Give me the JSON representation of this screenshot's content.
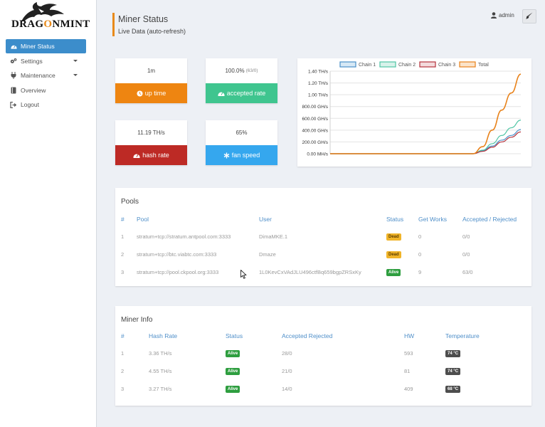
{
  "brand": {
    "logo_prefix": "DRAG",
    "logo_o": "O",
    "logo_suffix": "NMINT"
  },
  "sidebar": {
    "items": [
      {
        "label": "Miner Status",
        "icon": "dashboard-icon"
      },
      {
        "label": "Settings",
        "icon": "gears-icon"
      },
      {
        "label": "Maintenance",
        "icon": "plug-icon"
      },
      {
        "label": "Overview",
        "icon": "book-icon"
      },
      {
        "label": "Logout",
        "icon": "sign-out-icon"
      }
    ]
  },
  "header": {
    "title": "Miner Status",
    "subtitle": "Live Data (auto-refresh)"
  },
  "user": {
    "name": "admin"
  },
  "stats": [
    {
      "value": "1m",
      "value_note": "",
      "label": "up time",
      "color": "#ee8511",
      "icon": "clock-icon"
    },
    {
      "value": "100.0%",
      "value_note": "(63/0)",
      "label": "accepted rate",
      "color": "#3fc58f",
      "icon": "dashboard-icon"
    },
    {
      "value": "11.19 TH/s",
      "value_note": "",
      "label": "hash rate",
      "color": "#bd2a25",
      "icon": "dashboard-icon"
    },
    {
      "value": "65%",
      "value_note": "",
      "label": "fan speed",
      "color": "#35a7ee",
      "icon": "asterisk-icon"
    }
  ],
  "chart_data": {
    "type": "line",
    "x": [
      0,
      1,
      2,
      3,
      4,
      5,
      6,
      7,
      8,
      9,
      10,
      11,
      12,
      13,
      14,
      15,
      16,
      17,
      18,
      19,
      20
    ],
    "yticks": [
      "0.00 MH/s",
      "200.00 GH/s",
      "400.00 GH/s",
      "600.00 GH/s",
      "800.00 GH/s",
      "1.00 TH/s",
      "1.20 TH/s",
      "1.40 TH/s"
    ],
    "ylim": [
      0,
      1.4
    ],
    "legend_position": "top",
    "series": [
      {
        "name": "Chain 1",
        "color": "#4a90c8",
        "fill": "#d6e8f5",
        "values": [
          0,
          0,
          0,
          0,
          0,
          0,
          0,
          0,
          0,
          0,
          0,
          0,
          0,
          0,
          0,
          0,
          0.05,
          0.13,
          0.23,
          0.31,
          0.41
        ]
      },
      {
        "name": "Chain 2",
        "color": "#4fc5a5",
        "fill": "#d8f2ea",
        "values": [
          0,
          0,
          0,
          0,
          0,
          0,
          0,
          0,
          0,
          0,
          0,
          0,
          0,
          0,
          0,
          0,
          0.06,
          0.17,
          0.31,
          0.44,
          0.57
        ]
      },
      {
        "name": "Chain 3",
        "color": "#b5323c",
        "fill": "#f3dadc",
        "values": [
          0,
          0,
          0,
          0,
          0,
          0,
          0,
          0,
          0,
          0,
          0,
          0,
          0,
          0,
          0,
          0,
          0.04,
          0.11,
          0.2,
          0.28,
          0.37
        ]
      },
      {
        "name": "Total",
        "color": "#e8821a",
        "fill": "#fbe3c9",
        "values": [
          0,
          0,
          0,
          0,
          0,
          0,
          0,
          0,
          0,
          0,
          0,
          0,
          0,
          0,
          0,
          0,
          0.12,
          0.4,
          0.74,
          1.03,
          1.35
        ]
      }
    ]
  },
  "pools": {
    "title": "Pools",
    "columns": [
      "#",
      "Pool",
      "User",
      "Status",
      "Get Works",
      "Accepted / Rejected"
    ],
    "rows": [
      {
        "num": "1",
        "pool": "stratum+tcp://stratum.antpool.com:3333",
        "user": "DimaMKE.1",
        "status": "Dead",
        "works": "0",
        "accrej": "0/0"
      },
      {
        "num": "2",
        "pool": "stratum+tcp://btc.viabtc.com:3333",
        "user": "Dmaze",
        "status": "Dead",
        "works": "0",
        "accrej": "0/0"
      },
      {
        "num": "3",
        "pool": "stratum+tcp://pool.ckpool.org:3333",
        "user": "1L0KevCxVAdJLU496ctfBq659bgpZRSxKy",
        "status": "Alive",
        "works": "9",
        "accrej": "63/0"
      }
    ]
  },
  "miner_info": {
    "title": "Miner Info",
    "columns": [
      "#",
      "Hash Rate",
      "Status",
      "Accepted Rejected",
      "HW",
      "Temperature"
    ],
    "rows": [
      {
        "num": "1",
        "rate": "3.36 TH/s",
        "status": "Alive",
        "accrej": "28/0",
        "hw": "593",
        "temp": "74 °C"
      },
      {
        "num": "2",
        "rate": "4.55 TH/s",
        "status": "Alive",
        "accrej": "21/0",
        "hw": "81",
        "temp": "74 °C"
      },
      {
        "num": "3",
        "rate": "3.27 TH/s",
        "status": "Alive",
        "accrej": "14/0",
        "hw": "409",
        "temp": "68 °C"
      }
    ]
  }
}
